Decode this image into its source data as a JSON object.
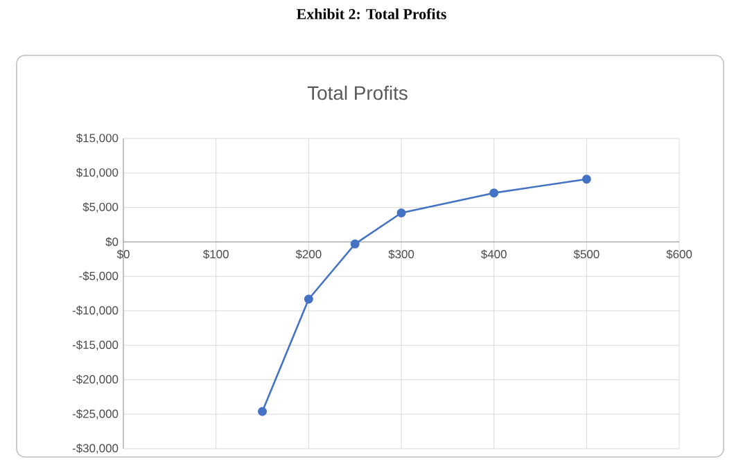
{
  "chart_data": {
    "type": "line",
    "title": "Exhibit 2: Total Profits",
    "subtitle": "Total Profits",
    "x": [
      150,
      200,
      250,
      300,
      400,
      500
    ],
    "series": [
      {
        "color": "#4472c4",
        "values": [
          -24600,
          -8300,
          -300,
          4200,
          7100,
          9100
        ]
      }
    ],
    "xlim": [
      0,
      600
    ],
    "xticks": [
      {
        "value": 0,
        "label": "$0"
      },
      {
        "value": 100,
        "label": "$100"
      },
      {
        "value": 200,
        "label": "$200"
      },
      {
        "value": 300,
        "label": "$300"
      },
      {
        "value": 400,
        "label": "$400"
      },
      {
        "value": 500,
        "label": "$500"
      },
      {
        "value": 600,
        "label": "$600"
      }
    ],
    "ylim": [
      -30000,
      15000
    ],
    "yticks": [
      {
        "value": -30000,
        "label": "-$30,000"
      },
      {
        "value": -25000,
        "label": "-$25,000"
      },
      {
        "value": -20000,
        "label": "-$20,000"
      },
      {
        "value": -15000,
        "label": "-$15,000"
      },
      {
        "value": -10000,
        "label": "-$10,000"
      },
      {
        "value": -5000,
        "label": "-$5,000"
      },
      {
        "value": 0,
        "label": "$0"
      },
      {
        "value": 5000,
        "label": "$5,000"
      },
      {
        "value": 10000,
        "label": "$10,000"
      },
      {
        "value": 15000,
        "label": "$15,000"
      }
    ],
    "grid": true,
    "marker": "circle",
    "line_style": "solid"
  }
}
